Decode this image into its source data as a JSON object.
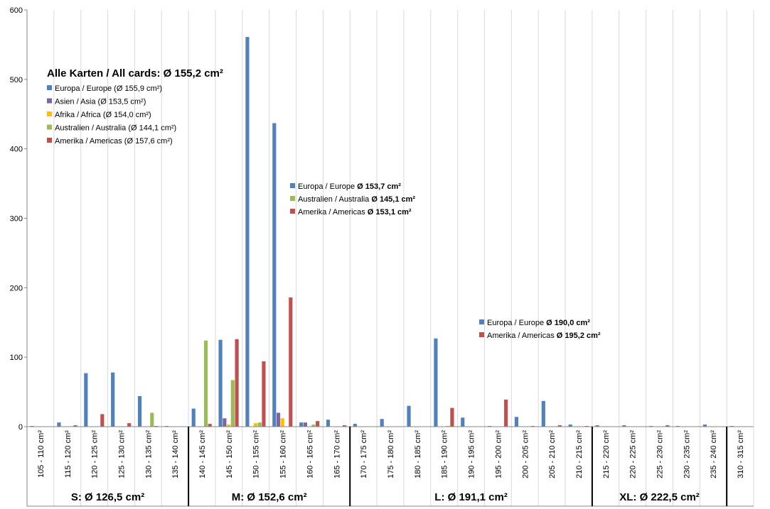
{
  "chart_data": {
    "type": "bar",
    "ylim": [
      0,
      600
    ],
    "y_ticks": [
      0,
      100,
      200,
      300,
      400,
      500,
      600
    ],
    "grid": "vertical lines between categories",
    "categories": [
      "105 - 110 cm²",
      "115 - 120 cm²",
      "120 - 125 cm²",
      "125 - 130 cm²",
      "130 - 135 cm²",
      "135 - 140 cm²",
      "140 - 145 cm²",
      "145 - 150 cm²",
      "150 - 155 cm²",
      "155 - 160 cm²",
      "160 - 165 cm²",
      "165 - 170 cm²",
      "170 - 175 cm²",
      "175 - 180 cm²",
      "180 - 185 cm²",
      "185 - 190 cm²",
      "190 - 195 cm²",
      "195 - 200 cm²",
      "200 - 205 cm²",
      "205 - 210 cm²",
      "210 - 215 cm²",
      "215 - 220 cm²",
      "220 - 225 cm²",
      "225 - 230 cm²",
      "230 - 235 cm²",
      "235 - 240 cm²",
      "310 - 315 cm²"
    ],
    "series": [
      {
        "name": "Europa / Europe",
        "color": "#4f81bd",
        "values": [
          1,
          6,
          77,
          78,
          44,
          1,
          26,
          125,
          561,
          437,
          6,
          10,
          4,
          11,
          30,
          127,
          13,
          1,
          14,
          37,
          3,
          2,
          2,
          1,
          1,
          3,
          1
        ]
      },
      {
        "name": "Asien / Asia",
        "color": "#8064a2",
        "values": [
          0,
          0,
          0,
          0,
          0,
          0,
          0,
          12,
          0,
          20,
          6,
          0,
          0,
          0,
          0,
          0,
          0,
          0,
          0,
          0,
          0,
          0,
          0,
          0,
          0,
          0,
          0
        ]
      },
      {
        "name": "Afrika / Africa",
        "color": "#ffc000",
        "values": [
          0,
          0,
          0,
          0,
          0,
          0,
          0,
          3,
          5,
          12,
          0,
          0,
          0,
          0,
          0,
          0,
          0,
          0,
          0,
          0,
          0,
          0,
          0,
          0,
          0,
          0,
          0
        ]
      },
      {
        "name": "Australien / Australia",
        "color": "#9bbb59",
        "values": [
          0,
          0,
          0,
          0,
          20,
          0,
          124,
          67,
          6,
          0,
          3,
          0,
          0,
          0,
          0,
          1,
          0,
          0,
          0,
          0,
          0,
          0,
          0,
          0,
          0,
          0,
          0
        ]
      },
      {
        "name": "Amerika / Americas",
        "color": "#c0504d",
        "values": [
          0,
          2,
          18,
          5,
          1,
          0,
          4,
          126,
          94,
          186,
          8,
          2,
          0,
          0,
          0,
          27,
          0,
          39,
          1,
          2,
          1,
          0,
          0,
          2,
          0,
          0,
          0
        ]
      }
    ],
    "size_groups": [
      {
        "label": "S: Ø 126,5 cm²",
        "from": 0,
        "to": 5
      },
      {
        "label": "M: Ø 152,6 cm²",
        "from": 6,
        "to": 11
      },
      {
        "label": "L: Ø 191,1 cm²",
        "from": 12,
        "to": 20
      },
      {
        "label": "XL: Ø 222,5 cm²",
        "from": 21,
        "to": 25
      },
      {
        "label": "",
        "from": 26,
        "to": 26
      }
    ],
    "legends": [
      {
        "title": "Alle Karten / All cards: Ø 155,2 cm²",
        "entries": [
          {
            "text": "Europa / Europe (Ø 155,9 cm²)",
            "value": "",
            "color": "#4f81bd"
          },
          {
            "text": "Asien / Asia (Ø 153,5 cm²)",
            "value": "",
            "color": "#8064a2"
          },
          {
            "text": "Afrika / Africa (Ø 154,0 cm²)",
            "value": "",
            "color": "#ffc000"
          },
          {
            "text": "Australien / Australia (Ø 144,1 cm²)",
            "value": "",
            "color": "#9bbb59"
          },
          {
            "text": "Amerika / Americas (Ø 157,6 cm²)",
            "value": "",
            "color": "#c0504d"
          }
        ]
      },
      {
        "title": "",
        "entries": [
          {
            "text": "Europa / Europe",
            "value": "Ø 153,7 cm²",
            "color": "#4f81bd"
          },
          {
            "text": "Australien / Australia",
            "value": "Ø 145,1 cm²",
            "color": "#9bbb59"
          },
          {
            "text": "Amerika / Americas",
            "value": "Ø 153,1 cm²",
            "color": "#c0504d"
          }
        ]
      },
      {
        "title": "",
        "entries": [
          {
            "text": "Europa / Europe",
            "value": "Ø 190,0 cm²",
            "color": "#4f81bd"
          },
          {
            "text": "Amerika / Americas",
            "value": "Ø 195,2 cm²",
            "color": "#c0504d"
          }
        ]
      }
    ]
  }
}
